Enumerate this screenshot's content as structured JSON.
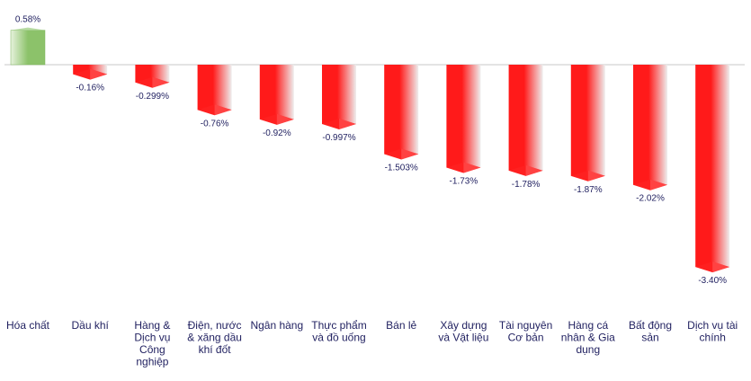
{
  "chart_data": {
    "type": "bar",
    "title": "",
    "xlabel": "",
    "ylabel": "",
    "ylim": [
      -3.4,
      0.58
    ],
    "grid": false,
    "legend": "none",
    "categories": [
      "Hóa chất",
      "Dầu khí",
      "Hàng & Dịch vụ Công nghiệp",
      "Điện, nước & xăng dầu khí đốt",
      "Ngân hàng",
      "Thực phẩm và đồ uống",
      "Bán lẻ",
      "Xây dựng và Vật liệu",
      "Tài nguyên Cơ bản",
      "Hàng cá nhân & Gia dụng",
      "Bất động sản",
      "Dịch vụ tài chính"
    ],
    "category_lines": [
      [
        "Hóa chất"
      ],
      [
        "Dầu khí"
      ],
      [
        "Hàng &",
        "Dịch vụ",
        "Công",
        "nghiệp"
      ],
      [
        "Điện, nước",
        "& xăng dầu",
        "khí đốt"
      ],
      [
        "Ngân hàng"
      ],
      [
        "Thực phẩm",
        "và đồ uống"
      ],
      [
        "Bán lẻ"
      ],
      [
        "Xây dựng",
        "và Vật liệu"
      ],
      [
        "Tài nguyên",
        "Cơ bản"
      ],
      [
        "Hàng cá",
        "nhân & Gia",
        "dụng"
      ],
      [
        "Bất động",
        "sản"
      ],
      [
        "Dịch vụ tài",
        "chính"
      ]
    ],
    "values": [
      0.58,
      -0.16,
      -0.299,
      -0.76,
      -0.92,
      -0.997,
      -1.503,
      -1.73,
      -1.78,
      -1.87,
      -2.02,
      -3.4
    ],
    "data_labels": [
      "0.58%",
      "-0.16%",
      "-0.299%",
      "-0.76%",
      "-0.92%",
      "-0.997%",
      "-1.503%",
      "-1.73%",
      "-1.78%",
      "-1.87%",
      "-2.02%",
      "-3.40%"
    ],
    "colors": {
      "positive": "#8cc26a",
      "positive_light": "#e6f2dc",
      "negative": "#ff1a1a",
      "negative_light": "#eeeeee",
      "baseline": "#c8c8c8",
      "value_text": "#1f1f5f",
      "category_text": "#1f1f5f"
    }
  }
}
